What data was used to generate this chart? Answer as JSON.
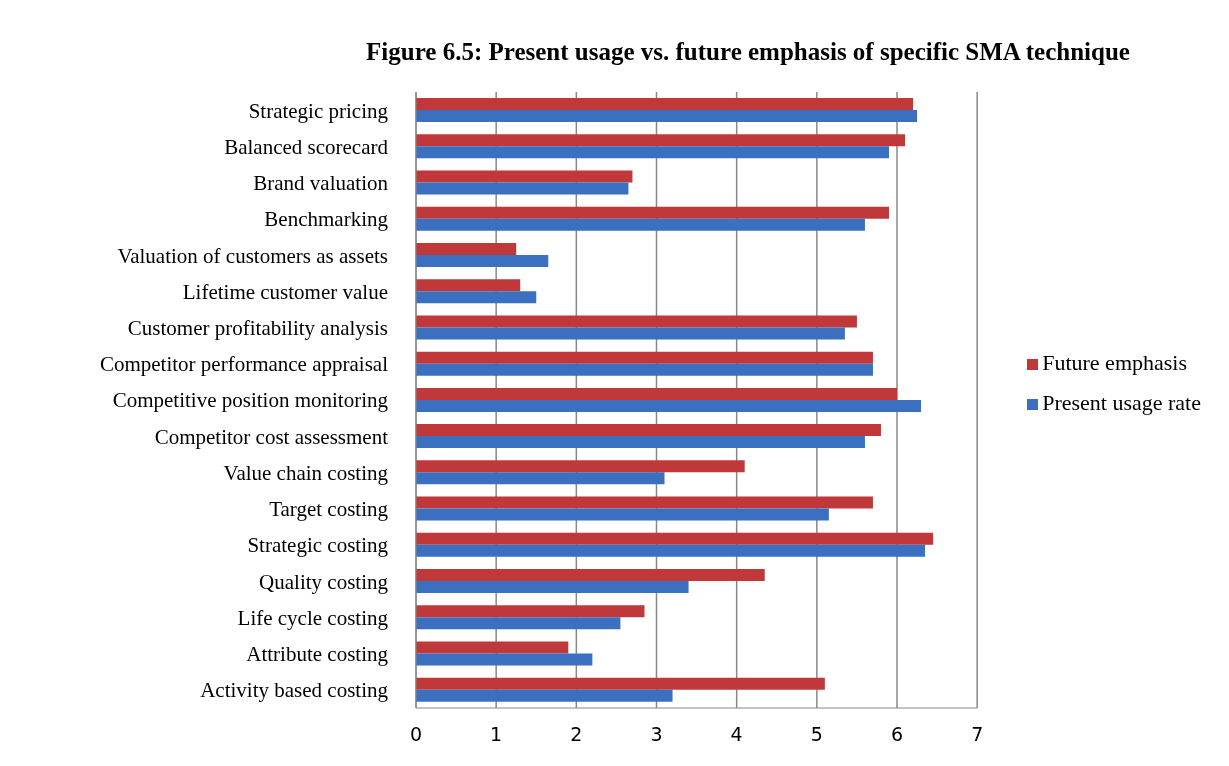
{
  "chart_data": {
    "type": "bar",
    "orientation": "horizontal",
    "title": "Figure 6.5: Present usage vs. future emphasis of specific SMA technique",
    "categories": [
      "Strategic pricing",
      "Balanced scorecard",
      "Brand valuation",
      "Benchmarking",
      "Valuation of customers as assets",
      "Lifetime customer value",
      "Customer profitability analysis",
      "Competitor performance appraisal",
      "Competitive position monitoring",
      "Competitor cost assessment",
      "Value chain costing",
      "Target costing",
      "Strategic costing",
      "Quality costing",
      "Life cycle costing",
      "Attribute costing",
      "Activity based costing"
    ],
    "series": [
      {
        "name": "Future emphasis",
        "color": "#c0383a",
        "values": [
          6.2,
          6.1,
          2.7,
          5.9,
          1.25,
          1.3,
          5.5,
          5.7,
          6.0,
          5.8,
          4.1,
          5.7,
          6.45,
          4.35,
          2.85,
          1.9,
          5.1
        ]
      },
      {
        "name": "Present usage rate",
        "color": "#3a70bf",
        "values": [
          6.25,
          5.9,
          2.65,
          5.6,
          1.65,
          1.5,
          5.35,
          5.7,
          6.3,
          5.6,
          3.1,
          5.15,
          6.35,
          3.4,
          2.55,
          2.2,
          3.2
        ]
      }
    ],
    "xlim": [
      0,
      7
    ],
    "xticks": [
      0,
      1,
      2,
      3,
      4,
      5,
      6,
      7
    ],
    "grid": "x",
    "legend": "right"
  }
}
